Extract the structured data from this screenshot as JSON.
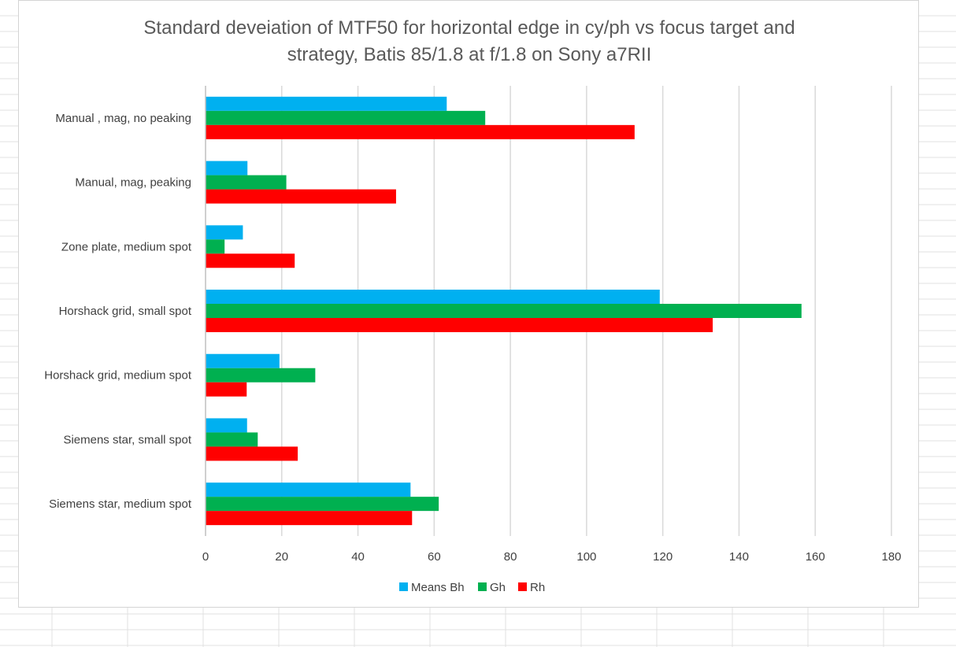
{
  "chart_data": {
    "type": "bar",
    "orientation": "horizontal",
    "title": "Standard deveiation of MTF50 for horizontal edge in cy/ph vs focus target and strategy, Batis 85/1.8 at f/1.8 on Sony a7RII",
    "title_lines": [
      "Standard deveiation of MTF50 for horizontal edge in cy/ph vs focus target and",
      "strategy, Batis 85/1.8 at f/1.8 on Sony a7RII"
    ],
    "categories": [
      "Manual , mag, no peaking",
      "Manual, mag, peaking",
      "Zone plate, medium spot",
      "Horshack grid, small spot",
      "Horshack grid, medium spot",
      "Siemens star, small spot",
      "Siemens star, medium spot"
    ],
    "series": [
      {
        "name": "Means Bh",
        "color": "#00b0f0",
        "values": [
          63.3,
          11.0,
          9.8,
          119.2,
          19.4,
          10.9,
          53.8
        ]
      },
      {
        "name": "Gh",
        "color": "#00b050",
        "values": [
          73.4,
          21.2,
          5.0,
          156.4,
          28.8,
          13.7,
          61.2
        ]
      },
      {
        "name": "Rh",
        "color": "#ff0000",
        "values": [
          112.6,
          50.0,
          23.4,
          133.1,
          10.8,
          24.2,
          54.2
        ]
      }
    ],
    "xlim": [
      0,
      180
    ],
    "xticks": [
      0,
      20,
      40,
      60,
      80,
      100,
      120,
      140,
      160,
      180
    ],
    "xlabel": "",
    "ylabel": "",
    "grid": "vertical",
    "legend_position": "bottom"
  }
}
